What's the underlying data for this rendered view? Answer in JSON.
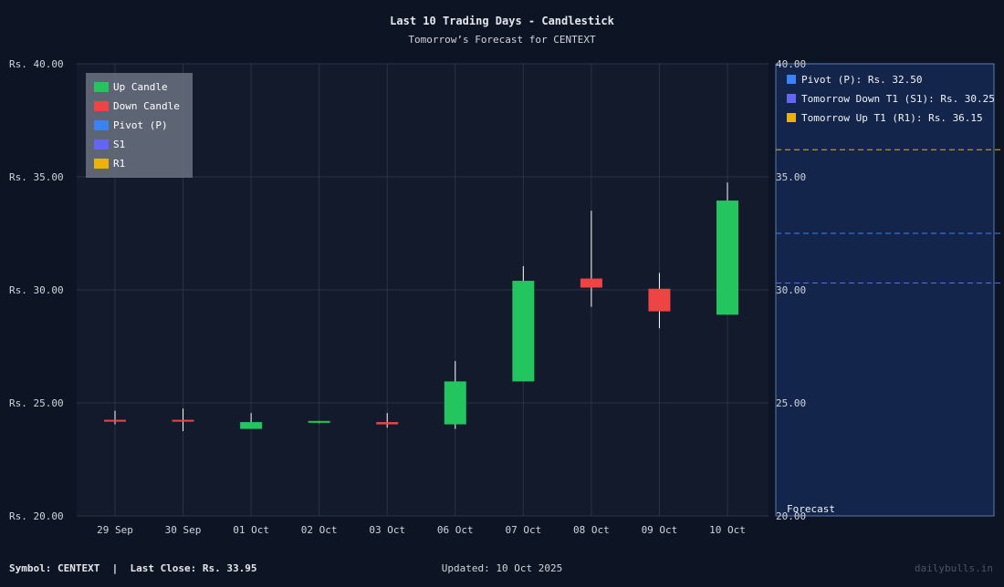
{
  "colors": {
    "background": "#0d1424",
    "plot_bg": "#131a2c",
    "grid": "#2a3347",
    "up": "#22c55e",
    "down": "#ef4444",
    "pivot": "#3b82f6",
    "s1": "#6366f1",
    "r1": "#eab308",
    "forecast_bg": "#13254a",
    "forecast_border": "#5b7bb5"
  },
  "chart_data": {
    "type": "candlestick",
    "title": "Last 10 Trading Days - Candlestick",
    "subtitle": "Tomorrow’s Forecast for CENTEXT",
    "categories": [
      "29 Sep",
      "30 Sep",
      "01 Oct",
      "02 Oct",
      "03 Oct",
      "06 Oct",
      "07 Oct",
      "08 Oct",
      "09 Oct",
      "10 Oct"
    ],
    "candles": [
      {
        "date": "29 Sep",
        "open": 24.25,
        "high": 24.65,
        "low": 24.05,
        "close": 24.2
      },
      {
        "date": "30 Sep",
        "open": 24.25,
        "high": 24.75,
        "low": 23.75,
        "close": 24.2
      },
      {
        "date": "01 Oct",
        "open": 23.85,
        "high": 24.55,
        "low": 23.85,
        "close": 24.15
      },
      {
        "date": "02 Oct",
        "open": 24.15,
        "high": 24.2,
        "low": 24.1,
        "close": 24.2
      },
      {
        "date": "03 Oct",
        "open": 24.15,
        "high": 24.55,
        "low": 23.9,
        "close": 24.05
      },
      {
        "date": "06 Oct",
        "open": 24.05,
        "high": 26.85,
        "low": 23.85,
        "close": 25.95
      },
      {
        "date": "07 Oct",
        "open": 25.95,
        "high": 31.05,
        "low": 25.95,
        "close": 30.4
      },
      {
        "date": "08 Oct",
        "open": 30.5,
        "high": 33.5,
        "low": 29.25,
        "close": 30.1
      },
      {
        "date": "09 Oct",
        "open": 30.05,
        "high": 30.75,
        "low": 28.3,
        "close": 29.05
      },
      {
        "date": "10 Oct",
        "open": 28.9,
        "high": 34.75,
        "low": 28.9,
        "close": 33.95
      }
    ],
    "y_ticks": [
      "Rs. 20.00",
      "Rs. 25.00",
      "Rs. 30.00",
      "Rs. 35.00",
      "Rs. 40.00"
    ],
    "y_ticks_right": [
      "20.00",
      "25.00",
      "30.00",
      "35.00",
      "40.00"
    ],
    "ylim": [
      20,
      40
    ],
    "legend": [
      {
        "label": "Up Candle",
        "color": "#22c55e"
      },
      {
        "label": "Down Candle",
        "color": "#ef4444"
      },
      {
        "label": "Pivot (P)",
        "color": "#3b82f6"
      },
      {
        "label": "S1",
        "color": "#6366f1"
      },
      {
        "label": "R1",
        "color": "#eab308"
      }
    ],
    "legend_position": "top-left",
    "forecast": {
      "label": "Forecast",
      "levels": [
        {
          "label": "Pivot (P): Rs. 32.50",
          "value": 32.5,
          "color": "#3b82f6"
        },
        {
          "label": "Tomorrow Down T1 (S1): Rs. 30.25",
          "value": 30.3,
          "color": "#6366f1"
        },
        {
          "label": "Tomorrow Up T1 (R1): Rs. 36.15",
          "value": 36.2,
          "color": "#eab308"
        }
      ]
    },
    "grid": true
  },
  "footer": {
    "symbol": "Symbol: CENTEXT  |  Last Close: Rs. 33.95",
    "updated": "Updated: 10 Oct 2025",
    "brand": "dailybulls.in"
  }
}
